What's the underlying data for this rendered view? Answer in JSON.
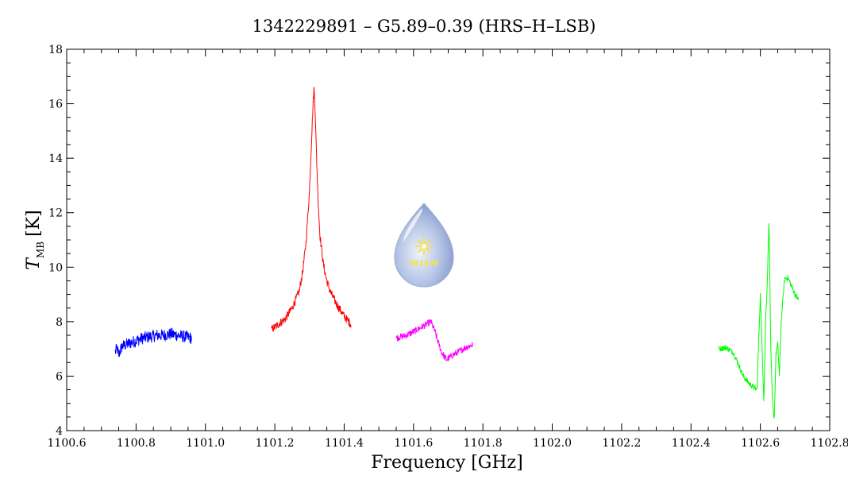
{
  "chart_data": {
    "type": "line",
    "title": "1342229891 – G5.89–0.39 (HRS–H–LSB)",
    "xlabel": "Frequency [GHz]",
    "ylabel_main": "T",
    "ylabel_sub": "MB",
    "ylabel_unit": "[K]",
    "xlim": [
      1100.6,
      1102.8
    ],
    "ylim": [
      4,
      18
    ],
    "xticks": [
      "1100.6",
      "1100.8",
      "1101.0",
      "1101.2",
      "1101.4",
      "1101.6",
      "1101.8",
      "1102.0",
      "1102.2",
      "1102.4",
      "1102.6",
      "1102.8"
    ],
    "yticks": [
      "4",
      "6",
      "8",
      "10",
      "12",
      "14",
      "16",
      "18"
    ],
    "grid": false,
    "logo_text": "WISH",
    "series": [
      {
        "color": "#0000ff",
        "points": [
          [
            1100.74,
            6.9
          ],
          [
            1100.745,
            7.0
          ],
          [
            1100.75,
            6.8
          ],
          [
            1100.76,
            7.1
          ],
          [
            1100.78,
            7.2
          ],
          [
            1100.8,
            7.3
          ],
          [
            1100.82,
            7.4
          ],
          [
            1100.84,
            7.45
          ],
          [
            1100.86,
            7.5
          ],
          [
            1100.88,
            7.5
          ],
          [
            1100.9,
            7.55
          ],
          [
            1100.92,
            7.5
          ],
          [
            1100.94,
            7.45
          ],
          [
            1100.96,
            7.4
          ]
        ],
        "noise": 0.22
      },
      {
        "color": "#ff0000",
        "points": [
          [
            1101.19,
            7.7
          ],
          [
            1101.21,
            7.9
          ],
          [
            1101.23,
            8.1
          ],
          [
            1101.25,
            8.5
          ],
          [
            1101.27,
            9.1
          ],
          [
            1101.28,
            9.8
          ],
          [
            1101.29,
            10.9
          ],
          [
            1101.3,
            12.8
          ],
          [
            1101.305,
            14.4
          ],
          [
            1101.31,
            15.9
          ],
          [
            1101.313,
            16.6
          ],
          [
            1101.316,
            15.9
          ],
          [
            1101.32,
            14.2
          ],
          [
            1101.325,
            12.4
          ],
          [
            1101.33,
            11.2
          ],
          [
            1101.34,
            10.1
          ],
          [
            1101.35,
            9.5
          ],
          [
            1101.36,
            9.1
          ],
          [
            1101.38,
            8.6
          ],
          [
            1101.4,
            8.2
          ],
          [
            1101.42,
            7.9
          ]
        ],
        "noise": 0.15
      },
      {
        "color": "#ff00ff",
        "points": [
          [
            1101.55,
            7.4
          ],
          [
            1101.58,
            7.5
          ],
          [
            1101.61,
            7.7
          ],
          [
            1101.63,
            7.85
          ],
          [
            1101.65,
            8.0
          ],
          [
            1101.66,
            7.7
          ],
          [
            1101.67,
            7.3
          ],
          [
            1101.68,
            6.9
          ],
          [
            1101.695,
            6.6
          ],
          [
            1101.71,
            6.75
          ],
          [
            1101.73,
            6.9
          ],
          [
            1101.75,
            7.05
          ],
          [
            1101.77,
            7.15
          ]
        ],
        "noise": 0.12
      },
      {
        "color": "#00ff00",
        "points": [
          [
            1102.48,
            7.0
          ],
          [
            1102.5,
            7.05
          ],
          [
            1102.52,
            6.9
          ],
          [
            1102.535,
            6.5
          ],
          [
            1102.55,
            6.0
          ],
          [
            1102.57,
            5.7
          ],
          [
            1102.59,
            5.5
          ],
          [
            1102.6,
            9.0
          ],
          [
            1102.605,
            7.0
          ],
          [
            1102.61,
            5.1
          ],
          [
            1102.615,
            8.0
          ],
          [
            1102.62,
            9.5
          ],
          [
            1102.625,
            11.8
          ],
          [
            1102.63,
            7.0
          ],
          [
            1102.635,
            5.0
          ],
          [
            1102.64,
            4.4
          ],
          [
            1102.645,
            6.8
          ],
          [
            1102.65,
            7.2
          ],
          [
            1102.655,
            6.0
          ],
          [
            1102.66,
            8.0
          ],
          [
            1102.67,
            9.6
          ],
          [
            1102.68,
            9.6
          ],
          [
            1102.69,
            9.3
          ],
          [
            1102.7,
            9.0
          ],
          [
            1102.71,
            8.8
          ]
        ],
        "noise": 0.1
      }
    ]
  }
}
